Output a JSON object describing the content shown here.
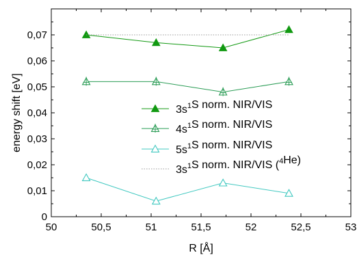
{
  "chart_data": {
    "type": "line",
    "title": "",
    "xlabel": "R [Å]",
    "ylabel": "energy shift [eV]",
    "xlim": [
      50,
      53
    ],
    "ylim": [
      0,
      0.08
    ],
    "x_ticks": [
      "50",
      "50,5",
      "51",
      "51,5",
      "52",
      "52,5",
      "53"
    ],
    "y_ticks": [
      "0",
      "0,01",
      "0,02",
      "0,03",
      "0,04",
      "0,05",
      "0,06",
      "0,07"
    ],
    "grid": false,
    "legend_position": "center-right",
    "series": [
      {
        "key": "s3",
        "legend": {
          "prefix": "3s",
          "sup": "1",
          "suffix": "S norm. NIR/VIS",
          "tail": "",
          "tail_sup": "",
          "tail_end": ""
        },
        "color": "#119911",
        "marker": "triangle-filled",
        "line_style": "solid",
        "x": [
          50.35,
          51.05,
          51.72,
          52.38
        ],
        "y": [
          0.07,
          0.067,
          0.065,
          0.072
        ]
      },
      {
        "key": "s4",
        "legend": {
          "prefix": "4s",
          "sup": "1",
          "suffix": "S norm. NIR/VIS",
          "tail": "",
          "tail_sup": "",
          "tail_end": ""
        },
        "color": "#2a9c55",
        "marker": "triangle-plus",
        "line_style": "solid",
        "x": [
          50.35,
          51.05,
          51.72,
          52.38
        ],
        "y": [
          0.052,
          0.052,
          0.048,
          0.052
        ]
      },
      {
        "key": "s5",
        "legend": {
          "prefix": "5s",
          "sup": "1",
          "suffix": "S norm. NIR/VIS",
          "tail": "",
          "tail_sup": "",
          "tail_end": ""
        },
        "color": "#40c8c0",
        "marker": "triangle-open",
        "line_style": "solid",
        "x": [
          50.35,
          51.05,
          51.72,
          52.38
        ],
        "y": [
          0.015,
          0.006,
          0.013,
          0.009
        ]
      },
      {
        "key": "he4",
        "legend": {
          "prefix": "3s",
          "sup": "1",
          "suffix": "S norm. NIR/VIS",
          "tail": " (",
          "tail_sup": "4",
          "tail_end": "He)"
        },
        "color": "#999999",
        "marker": "none",
        "line_style": "dotted",
        "x": [
          50.35,
          52.38
        ],
        "y": [
          0.07,
          0.07
        ]
      }
    ]
  }
}
